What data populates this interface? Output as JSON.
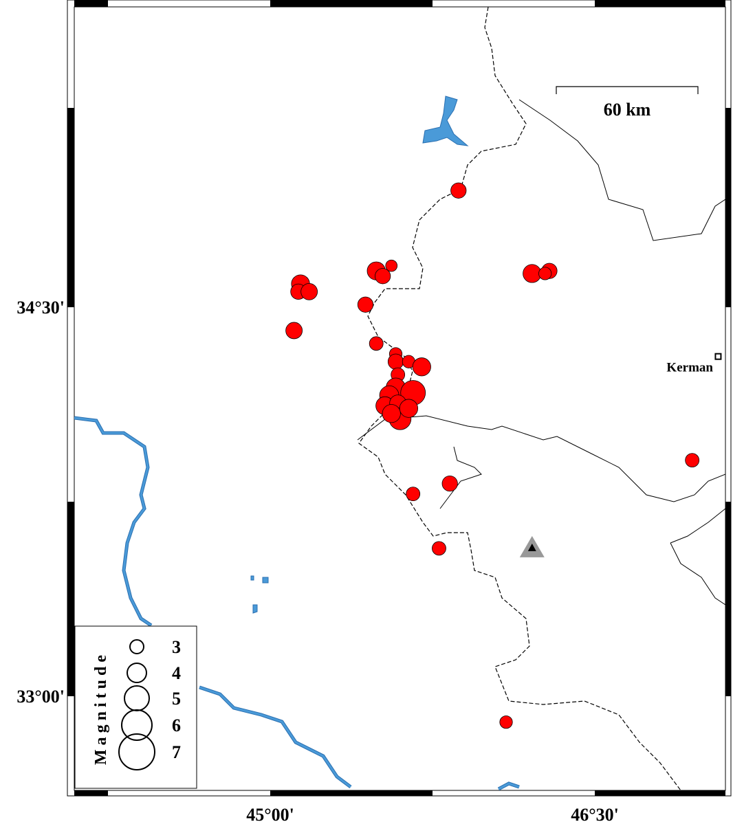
{
  "map": {
    "lon_ticks": [
      "45°00'",
      "46°30'"
    ],
    "lat_ticks": [
      "34°30'",
      "33°00'"
    ],
    "scale_bar": "60 km",
    "city": {
      "name": "Kerman",
      "lon": 47.07,
      "lat": 34.31
    },
    "station": {
      "lon": 46.21,
      "lat": 33.57
    },
    "colors": {
      "event": "#ff0000",
      "water": "#4a9ad8",
      "station": "#999999"
    },
    "legend": {
      "title": "Magnitude",
      "magnitudes": [
        "3",
        "4",
        "5",
        "6",
        "7"
      ]
    },
    "events": [
      {
        "lon": 45.87,
        "lat": 34.95,
        "mag": 3.3
      },
      {
        "lon": 45.49,
        "lat": 34.64,
        "mag": 3.8
      },
      {
        "lon": 45.52,
        "lat": 34.62,
        "mag": 3.3
      },
      {
        "lon": 45.56,
        "lat": 34.66,
        "mag": 2.6
      },
      {
        "lon": 45.14,
        "lat": 34.59,
        "mag": 3.8
      },
      {
        "lon": 45.13,
        "lat": 34.56,
        "mag": 3.3
      },
      {
        "lon": 45.18,
        "lat": 34.56,
        "mag": 3.5
      },
      {
        "lon": 45.44,
        "lat": 34.51,
        "mag": 3.3
      },
      {
        "lon": 45.11,
        "lat": 34.41,
        "mag": 3.5
      },
      {
        "lon": 45.49,
        "lat": 34.36,
        "mag": 3.0
      },
      {
        "lon": 45.58,
        "lat": 34.32,
        "mag": 2.8
      },
      {
        "lon": 45.58,
        "lat": 34.29,
        "mag": 3.3
      },
      {
        "lon": 45.64,
        "lat": 34.29,
        "mag": 2.8
      },
      {
        "lon": 45.7,
        "lat": 34.27,
        "mag": 3.8
      },
      {
        "lon": 45.59,
        "lat": 34.24,
        "mag": 3.0
      },
      {
        "lon": 45.58,
        "lat": 34.19,
        "mag": 4.0
      },
      {
        "lon": 45.66,
        "lat": 34.17,
        "mag": 5.0
      },
      {
        "lon": 45.55,
        "lat": 34.16,
        "mag": 4.0
      },
      {
        "lon": 45.53,
        "lat": 34.12,
        "mag": 3.8
      },
      {
        "lon": 45.59,
        "lat": 34.13,
        "mag": 3.5
      },
      {
        "lon": 45.6,
        "lat": 34.07,
        "mag": 4.5
      },
      {
        "lon": 45.56,
        "lat": 34.09,
        "mag": 3.8
      },
      {
        "lon": 45.64,
        "lat": 34.11,
        "mag": 3.8
      },
      {
        "lon": 46.21,
        "lat": 34.63,
        "mag": 3.8
      },
      {
        "lon": 46.29,
        "lat": 34.64,
        "mag": 3.3
      },
      {
        "lon": 46.27,
        "lat": 34.63,
        "mag": 2.8
      },
      {
        "lon": 46.95,
        "lat": 33.91,
        "mag": 3.0
      },
      {
        "lon": 45.83,
        "lat": 33.82,
        "mag": 3.3
      },
      {
        "lon": 45.66,
        "lat": 33.78,
        "mag": 3.0
      },
      {
        "lon": 45.78,
        "lat": 33.57,
        "mag": 3.0
      },
      {
        "lon": 46.09,
        "lat": 32.9,
        "mag": 2.8
      }
    ]
  }
}
